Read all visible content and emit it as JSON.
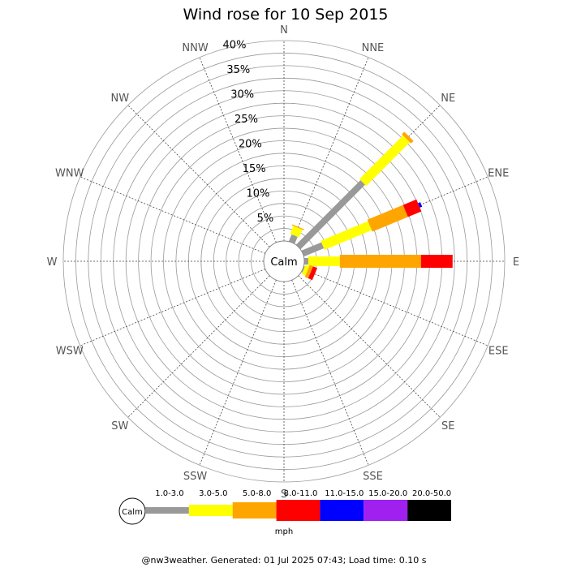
{
  "chart_data": {
    "type": "wind-rose",
    "title": "Wind rose for 10 Sep 2015",
    "calm_label": "Calm",
    "directions": [
      "N",
      "NNE",
      "NE",
      "ENE",
      "E",
      "ESE",
      "SE",
      "SSE",
      "S",
      "SSW",
      "SW",
      "WSW",
      "W",
      "WNW",
      "NW",
      "NNW"
    ],
    "radial_ticks": [
      "5%",
      "10%",
      "15%",
      "20%",
      "25%",
      "30%",
      "35%",
      "40%"
    ],
    "radial_max": 40,
    "unit": "mph",
    "bins": [
      {
        "label": "1.0-3.0",
        "color": "#999999"
      },
      {
        "label": "3.0-5.0",
        "color": "#ffff00"
      },
      {
        "label": "5.0-8.0",
        "color": "#ffa500"
      },
      {
        "label": "8.0-11.0",
        "color": "#ff0000"
      },
      {
        "label": "11.0-15.0",
        "color": "#0000ff"
      },
      {
        "label": "15.0-20.0",
        "color": "#a020f0"
      },
      {
        "label": "20.0-50.0",
        "color": "#000000"
      }
    ],
    "series": [
      {
        "direction": "NNE",
        "values": [
          1.5,
          1.7,
          0.2,
          0,
          0,
          0,
          0
        ]
      },
      {
        "direction": "NE",
        "values": [
          18.2,
          12.3,
          0.7,
          0,
          0,
          0,
          0
        ]
      },
      {
        "direction": "ENE",
        "values": [
          4.3,
          10.2,
          7.7,
          2.9,
          0.5,
          0,
          0
        ]
      },
      {
        "direction": "E",
        "values": [
          0.8,
          6.3,
          16.2,
          6.3,
          0,
          0,
          0
        ]
      },
      {
        "direction": "ESE",
        "values": [
          0.2,
          0.8,
          0.7,
          0.9,
          0,
          0,
          0
        ]
      }
    ]
  },
  "footer": "@nw3weather. Generated: 01 Jul 2025 07:43; Load time: 0.10 s"
}
